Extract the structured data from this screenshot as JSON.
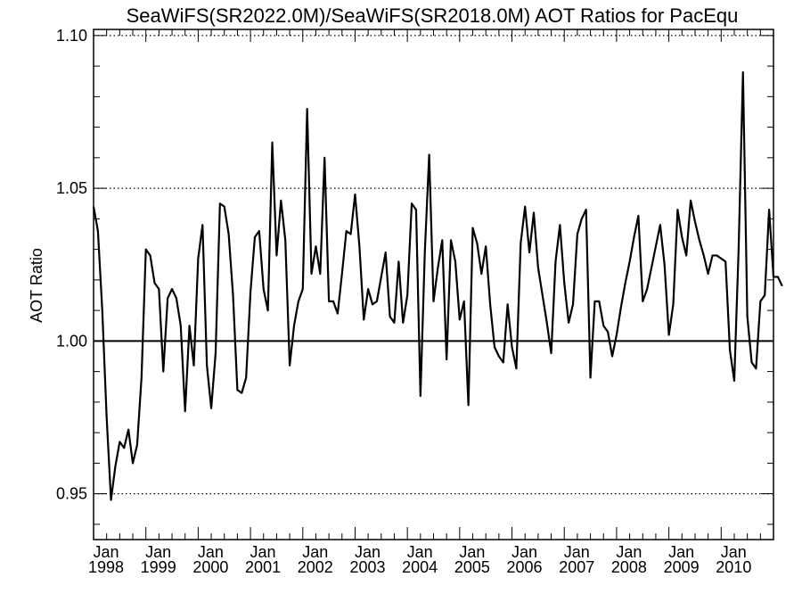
{
  "chart_data": {
    "type": "line",
    "title": "SeaWiFS(SR2022.0M)/SeaWiFS(SR2018.0M)  AOT Ratios for PacEqu",
    "xlabel": "",
    "ylabel": "AOT Ratio",
    "ylim": [
      0.935,
      1.102
    ],
    "xlim": [
      "1998-01",
      "2011-01"
    ],
    "y_ticks": [
      {
        "value": 0.95,
        "label": "0.95"
      },
      {
        "value": 1.0,
        "label": "1.00"
      },
      {
        "value": 1.05,
        "label": "1.05"
      },
      {
        "value": 1.1,
        "label": "1.10"
      }
    ],
    "x_ticks": [
      {
        "month": "Jan",
        "year": "1998"
      },
      {
        "month": "Jan",
        "year": "1999"
      },
      {
        "month": "Jan",
        "year": "2000"
      },
      {
        "month": "Jan",
        "year": "2001"
      },
      {
        "month": "Jan",
        "year": "2002"
      },
      {
        "month": "Jan",
        "year": "2003"
      },
      {
        "month": "Jan",
        "year": "2004"
      },
      {
        "month": "Jan",
        "year": "2005"
      },
      {
        "month": "Jan",
        "year": "2006"
      },
      {
        "month": "Jan",
        "year": "2007"
      },
      {
        "month": "Jan",
        "year": "2008"
      },
      {
        "month": "Jan",
        "year": "2009"
      },
      {
        "month": "Jan",
        "year": "2010"
      }
    ],
    "reference_lines": [
      {
        "y": 0.95,
        "style": "dotted"
      },
      {
        "y": 1.0,
        "style": "solid"
      },
      {
        "y": 1.05,
        "style": "dotted"
      },
      {
        "y": 1.1,
        "style": "dotted"
      }
    ],
    "series": [
      {
        "x_start": "1998-01",
        "interval": "monthly",
        "values": [
          1.044,
          1.036,
          1.01,
          0.975,
          0.948,
          0.959,
          0.967,
          0.965,
          0.971,
          0.96,
          0.966,
          0.988,
          1.03,
          1.028,
          1.019,
          1.017,
          0.99,
          1.014,
          1.017,
          1.014,
          1.005,
          0.977,
          1.005,
          0.992,
          1.027,
          1.038,
          0.992,
          0.978,
          0.996,
          1.045,
          1.044,
          1.035,
          1.015,
          0.984,
          0.983,
          0.988,
          1.016,
          1.034,
          1.036,
          1.017,
          1.01,
          1.065,
          1.028,
          1.046,
          1.033,
          0.992,
          1.005,
          1.013,
          1.017,
          1.076,
          1.022,
          1.031,
          1.022,
          1.06,
          1.013,
          1.013,
          1.009,
          1.022,
          1.036,
          1.035,
          1.048,
          1.031,
          1.007,
          1.017,
          1.012,
          1.013,
          1.021,
          1.029,
          1.008,
          1.006,
          1.026,
          1.006,
          1.015,
          1.045,
          1.043,
          0.982,
          1.029,
          1.061,
          1.013,
          1.024,
          1.033,
          0.994,
          1.033,
          1.026,
          1.007,
          1.013,
          0.979,
          1.037,
          1.032,
          1.022,
          1.031,
          1.012,
          0.998,
          0.995,
          0.993,
          1.012,
          0.998,
          0.991,
          1.032,
          1.044,
          1.029,
          1.042,
          1.024,
          1.015,
          1.006,
          0.996,
          1.026,
          1.038,
          1.019,
          1.006,
          1.012,
          1.035,
          1.04,
          1.043,
          0.988,
          1.013,
          1.013,
          1.005,
          1.003,
          0.995,
          1.002,
          1.011,
          1.019,
          1.026,
          1.034,
          1.041,
          1.013,
          1.017,
          1.024,
          1.031,
          1.038,
          1.025,
          1.002,
          1.012,
          1.043,
          1.034,
          1.028,
          1.046,
          1.039,
          1.033,
          1.028,
          1.022,
          1.028,
          1.028,
          1.027,
          1.026,
          0.997,
          0.987,
          1.03,
          1.088,
          1.008,
          0.993,
          0.991,
          1.013,
          1.015,
          1.043,
          1.021,
          1.021,
          1.018
        ]
      }
    ]
  }
}
